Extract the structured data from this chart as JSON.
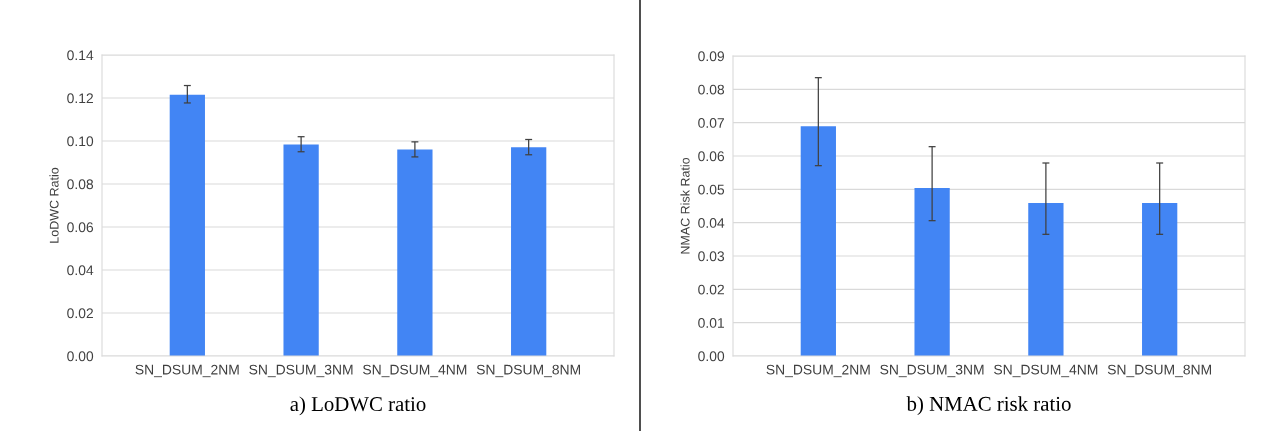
{
  "chart_data": [
    {
      "type": "bar",
      "title": "a) LoDWC ratio",
      "ylabel": "LoDWC Ratio",
      "categories": [
        "SN_DSUM_2NM",
        "SN_DSUM_3NM",
        "SN_DSUM_4NM",
        "SN_DSUM_8NM"
      ],
      "values": [
        0.1215,
        0.0984,
        0.096,
        0.0971
      ],
      "color": "#4285f4",
      "errors": [
        [
          0.1177,
          0.1258
        ],
        [
          0.095,
          0.102
        ],
        [
          0.0926,
          0.0996
        ],
        [
          0.0936,
          0.1007
        ]
      ],
      "ylim": [
        0,
        0.14
      ],
      "yticks": [
        {
          "value": 0,
          "label": "0.00"
        },
        {
          "value": 0.02,
          "label": "0.02"
        },
        {
          "value": 0.04,
          "label": "0.04"
        },
        {
          "value": 0.06,
          "label": "0.06"
        },
        {
          "value": 0.08,
          "label": "0.08"
        },
        {
          "value": 0.1,
          "label": "0.10"
        },
        {
          "value": 0.12,
          "label": "0.12"
        },
        {
          "value": 0.14,
          "label": "0.14"
        }
      ],
      "grid": "y"
    },
    {
      "type": "bar",
      "title": "b) NMAC risk ratio",
      "ylabel": "NMAC Risk Ratio",
      "categories": [
        "SN_DSUM_2NM",
        "SN_DSUM_3NM",
        "SN_DSUM_4NM",
        "SN_DSUM_8NM"
      ],
      "values": [
        0.0689,
        0.0504,
        0.0459,
        0.0459
      ],
      "color": "#4285f4",
      "errors": [
        [
          0.0571,
          0.0835
        ],
        [
          0.0406,
          0.0628
        ],
        [
          0.0365,
          0.0579
        ],
        [
          0.0365,
          0.0579
        ]
      ],
      "ylim": [
        0,
        0.09
      ],
      "yticks": [
        {
          "value": 0,
          "label": "0.00"
        },
        {
          "value": 0.01,
          "label": "0.01"
        },
        {
          "value": 0.02,
          "label": "0.02"
        },
        {
          "value": 0.03,
          "label": "0.03"
        },
        {
          "value": 0.04,
          "label": "0.04"
        },
        {
          "value": 0.05,
          "label": "0.05"
        },
        {
          "value": 0.06,
          "label": "0.06"
        },
        {
          "value": 0.07,
          "label": "0.07"
        },
        {
          "value": 0.08,
          "label": "0.08"
        },
        {
          "value": 0.09,
          "label": "0.09"
        }
      ],
      "grid": "y"
    }
  ]
}
